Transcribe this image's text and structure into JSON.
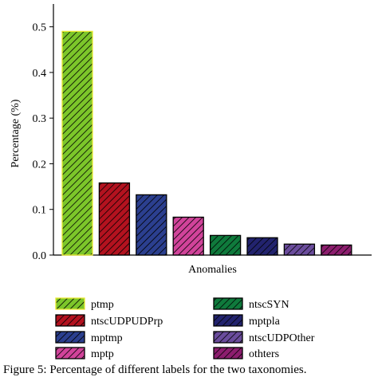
{
  "chart_data": {
    "type": "bar",
    "title": "",
    "xlabel": "Anomalies",
    "ylabel": "Percentage (%)",
    "ylim": [
      0,
      0.55
    ],
    "yticks": [
      0.0,
      0.1,
      0.2,
      0.3,
      0.4,
      0.5
    ],
    "ytick_labels": [
      "0.0",
      "0.1",
      "0.2",
      "0.3",
      "0.4",
      "0.5"
    ],
    "grid": false,
    "legend_position": "bottom",
    "categories": [
      "ptmp",
      "ntscUDPUDPrp",
      "mptmp",
      "mptp",
      "ntscSYN",
      "mptpla",
      "ntscUDPOther",
      "others"
    ],
    "legend_labels": [
      "ptmp",
      "ntscUDPUDPrp",
      "mptmp",
      "mptp",
      "ntscSYN",
      "mptpla",
      "ntscUDPOther",
      "othters"
    ],
    "values": [
      0.49,
      0.158,
      0.132,
      0.083,
      0.043,
      0.038,
      0.024,
      0.022
    ],
    "colors": [
      "#7cc62a",
      "#b3121f",
      "#2b3f8f",
      "#d1439a",
      "#0f7a3c",
      "#22236e",
      "#6a4c9c",
      "#8c1d6e"
    ],
    "edge_colors": [
      "#e8e830",
      "#000000",
      "#000000",
      "#000000",
      "#000000",
      "#000000",
      "#000000",
      "#000000"
    ]
  },
  "caption": "Figure 5: Percentage of different labels for the two taxonomies."
}
